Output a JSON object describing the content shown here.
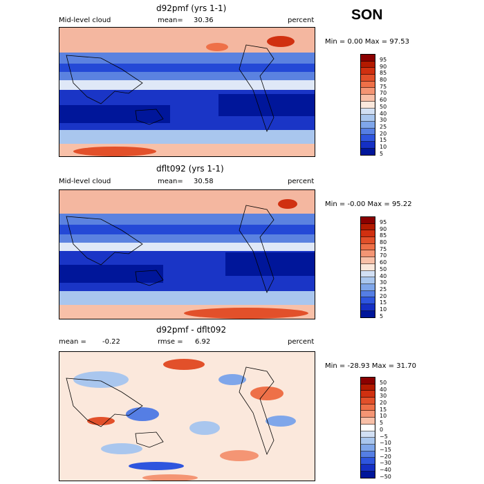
{
  "season": "SON",
  "panels": [
    {
      "title": "d92pmf (yrs 1-1)",
      "field": "Mid-level cloud",
      "mean_label": "mean=",
      "mean_value": "30.36",
      "units": "percent",
      "minmax": "Min =    0.00 Max =  97.53",
      "colorbar": [
        "95",
        "90",
        "85",
        "80",
        "75",
        "70",
        "60",
        "50",
        "40",
        "30",
        "25",
        "20",
        "15",
        "10",
        "5"
      ]
    },
    {
      "title": "dflt092 (yrs 1-1)",
      "field": "Mid-level cloud",
      "mean_label": "mean=",
      "mean_value": "30.58",
      "units": "percent",
      "minmax": "Min =  -0.00 Max =  95.22",
      "colorbar": [
        "95",
        "90",
        "85",
        "80",
        "75",
        "70",
        "60",
        "50",
        "40",
        "30",
        "25",
        "20",
        "15",
        "10",
        "5"
      ]
    },
    {
      "title": "d92pmf - dflt092",
      "mean_label": "mean =",
      "mean_value": "-0.22",
      "rmse_label": "rmse =",
      "rmse_value": "6.92",
      "units": "percent",
      "minmax": "Min = -28.93 Max =  31.70",
      "colorbar": [
        "50",
        "40",
        "30",
        "20",
        "15",
        "10",
        "5",
        "0",
        "−5",
        "−10",
        "−15",
        "−20",
        "−30",
        "−40",
        "−50"
      ]
    }
  ],
  "colors": {
    "abs_scale": [
      "#8b0000",
      "#b31a00",
      "#d03010",
      "#e2502a",
      "#ee7048",
      "#f49574",
      "#f8c0a8",
      "#fbe8dc",
      "#d2e0f4",
      "#a9c6ee",
      "#7fa6ea",
      "#557ee4",
      "#2e55de",
      "#1530c4",
      "#00169a"
    ],
    "diff_scale": [
      "#8b0000",
      "#b31a00",
      "#d03010",
      "#e2502a",
      "#ee7048",
      "#f49574",
      "#f8c0a8",
      "#ffffff",
      "#d2e0f4",
      "#a9c6ee",
      "#7fa6ea",
      "#557ee4",
      "#2e55de",
      "#1530c4",
      "#00169a"
    ]
  }
}
